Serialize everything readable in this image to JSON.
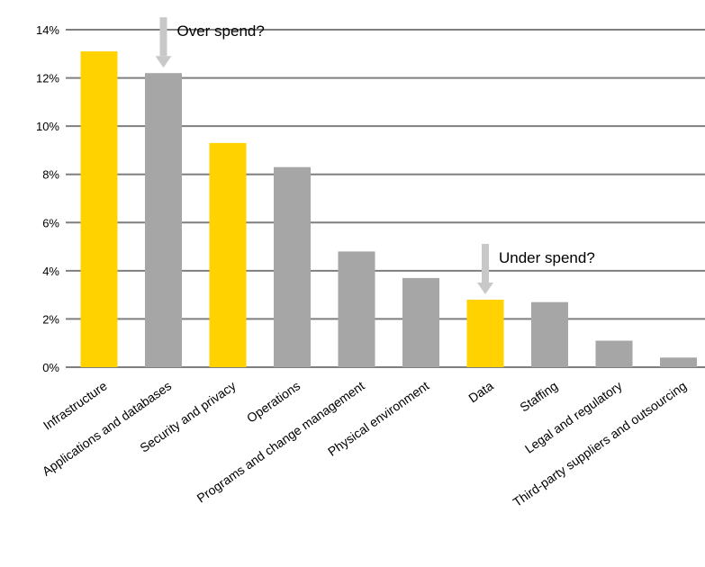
{
  "chart_data": {
    "type": "bar",
    "categories": [
      "Infrastructure",
      "Applications and databases",
      "Security and privacy",
      "Operations",
      "Programs and change management",
      "Physical environment",
      "Data",
      "Staffing",
      "Legal and regulatory",
      "Third-party suppliers and outsourcing"
    ],
    "values": [
      13.1,
      12.2,
      9.3,
      8.3,
      4.8,
      3.7,
      2.8,
      2.7,
      1.1,
      0.4
    ],
    "highlight": [
      true,
      false,
      true,
      false,
      false,
      false,
      true,
      false,
      false,
      false
    ],
    "colors": {
      "highlight": "#ffd200",
      "default": "#a6a6a6",
      "grid": "#7f7f7f",
      "arrow": "#c8c8c8"
    },
    "ylim": [
      0,
      14
    ],
    "yticks": [
      "0%",
      "2%",
      "4%",
      "6%",
      "8%",
      "10%",
      "12%",
      "14%"
    ],
    "ytick_values": [
      0,
      2,
      4,
      6,
      8,
      10,
      12,
      14
    ],
    "grid": true,
    "title": "",
    "xlabel": "",
    "ylabel": "",
    "annotations": [
      {
        "text": "Over spend?",
        "category": "Applications and databases"
      },
      {
        "text": "Under spend?",
        "category": "Data"
      }
    ]
  }
}
